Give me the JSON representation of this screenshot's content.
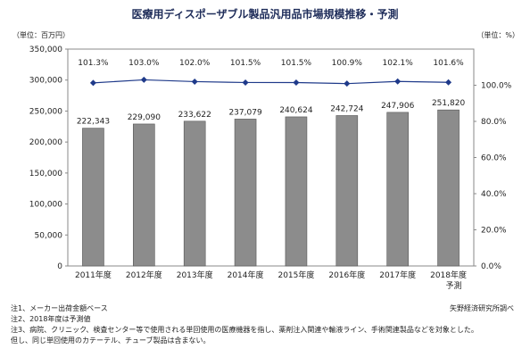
{
  "chart_data": {
    "type": "bar",
    "title": "医療用ディスポーザブル製品汎用品市場規模推移・予測",
    "left_unit_label": "（単位：百万円）",
    "right_unit_label": "（単位：%）",
    "categories": [
      "2011年度",
      "2012年度",
      "2013年度",
      "2014年度",
      "2015年度",
      "2016年度",
      "2017年度",
      "2018年度"
    ],
    "forecast_label": "予測",
    "values": [
      222343,
      229090,
      233622,
      237079,
      240624,
      242724,
      247906,
      251820
    ],
    "value_labels": [
      "222,343",
      "229,090",
      "233,622",
      "237,079",
      "240,624",
      "242,724",
      "247,906",
      "251,820"
    ],
    "growth": [
      101.3,
      103.0,
      102.0,
      101.5,
      101.5,
      100.9,
      102.1,
      101.6
    ],
    "growth_labels": [
      "101.3%",
      "103.0%",
      "102.0%",
      "101.5%",
      "101.5%",
      "100.9%",
      "102.1%",
      "101.6%"
    ],
    "ylim": [
      0,
      350000
    ],
    "y_ticks": [
      "0",
      "50,000",
      "100,000",
      "150,000",
      "200,000",
      "250,000",
      "300,000",
      "350,000"
    ],
    "y2lim": [
      0,
      120
    ],
    "y2_ticks": [
      "0.0%",
      "20.0%",
      "40.0%",
      "60.0%",
      "80.0%",
      "100.0%"
    ],
    "bar_color": "#8c8c8c",
    "line_color": "#1f3a8a"
  },
  "notes": [
    "注1、メーカー出荷金額ベース",
    "注2、2018年度は予測値",
    "注3、病院、クリニック、検査センター等で使用される単回使用の医療機器を指し、薬剤注入関連や輸液ライン、手術関連製品などを対象とした。",
    "但し、同じ単回使用のカテーテル、チューブ製品は含まない。"
  ],
  "source": "矢野経済研究所調べ"
}
